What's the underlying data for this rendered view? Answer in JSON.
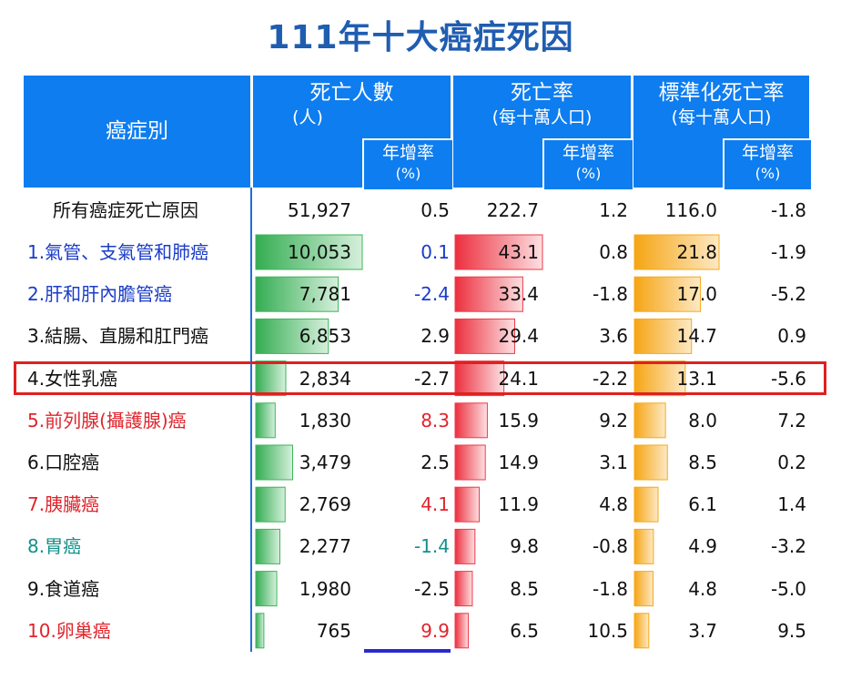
{
  "title": "111年十大癌症死因",
  "headers": {
    "category": "癌症別",
    "deaths": "死亡人數",
    "deaths_unit": "(人)",
    "rate": "死亡率",
    "rate_unit": "(每十萬人口)",
    "std_rate": "標準化死亡率",
    "std_rate_unit": "(每十萬人口)",
    "growth": "年增率",
    "growth_unit": "(%)"
  },
  "colors": {
    "header_bg": "#0e7df0",
    "title": "#1f5db0",
    "deaths_bar": "#3cb55a",
    "rate_bar": "#ee3a48",
    "std_rate_bar": "#f7a91c",
    "highlight": "#e02020",
    "divider": "#1d6fd8"
  },
  "total": {
    "name": "所有癌症死亡原因",
    "deaths": "51,927",
    "deaths_growth": "0.5",
    "rate": "222.7",
    "rate_growth": "1.2",
    "std_rate": "116.0",
    "std_rate_growth": "-1.8"
  },
  "rows": [
    {
      "name": "1.氣管、支氣管和肺癌",
      "name_color": "#1a3cc8",
      "deaths": "10,053",
      "deaths_value": 10053,
      "deaths_growth": "0.1",
      "deaths_growth_color": "#1a3cc8",
      "rate": "43.1",
      "rate_value": 43.1,
      "rate_growth": "0.8",
      "std_rate": "21.8",
      "std_rate_value": 21.8,
      "std_rate_growth": "-1.9"
    },
    {
      "name": "2.肝和肝內膽管癌",
      "name_color": "#1a3cc8",
      "deaths": "7,781",
      "deaths_value": 7781,
      "deaths_growth": "-2.4",
      "deaths_growth_color": "#1a3cc8",
      "rate": "33.4",
      "rate_value": 33.4,
      "rate_growth": "-1.8",
      "std_rate": "17.0",
      "std_rate_value": 17.0,
      "std_rate_growth": "-5.2"
    },
    {
      "name": "3.結腸、直腸和肛門癌",
      "name_color": "#111111",
      "deaths": "6,853",
      "deaths_value": 6853,
      "deaths_growth": "2.9",
      "deaths_growth_color": "#111111",
      "rate": "29.4",
      "rate_value": 29.4,
      "rate_growth": "3.6",
      "std_rate": "14.7",
      "std_rate_value": 14.7,
      "std_rate_growth": "0.9"
    },
    {
      "name": "4.女性乳癌",
      "name_color": "#111111",
      "deaths": "2,834",
      "deaths_value": 2834,
      "deaths_growth": "-2.7",
      "deaths_growth_color": "#111111",
      "rate": "24.1",
      "rate_value": 24.1,
      "rate_growth": "-2.2",
      "std_rate": "13.1",
      "std_rate_value": 13.1,
      "std_rate_growth": "-5.6"
    },
    {
      "name": "5.前列腺(攝護腺)癌",
      "name_color": "#e0242c",
      "deaths": "1,830",
      "deaths_value": 1830,
      "deaths_growth": "8.3",
      "deaths_growth_color": "#e0242c",
      "rate": "15.9",
      "rate_value": 15.9,
      "rate_growth": "9.2",
      "std_rate": "8.0",
      "std_rate_value": 8.0,
      "std_rate_growth": "7.2"
    },
    {
      "name": "6.口腔癌",
      "name_color": "#111111",
      "deaths": "3,479",
      "deaths_value": 3479,
      "deaths_growth": "2.5",
      "deaths_growth_color": "#111111",
      "rate": "14.9",
      "rate_value": 14.9,
      "rate_growth": "3.1",
      "std_rate": "8.5",
      "std_rate_value": 8.5,
      "std_rate_growth": "0.2"
    },
    {
      "name": "7.胰臟癌",
      "name_color": "#e0242c",
      "deaths": "2,769",
      "deaths_value": 2769,
      "deaths_growth": "4.1",
      "deaths_growth_color": "#e0242c",
      "rate": "11.9",
      "rate_value": 11.9,
      "rate_growth": "4.8",
      "std_rate": "6.1",
      "std_rate_value": 6.1,
      "std_rate_growth": "1.4"
    },
    {
      "name": "8.胃癌",
      "name_color": "#14908a",
      "deaths": "2,277",
      "deaths_value": 2277,
      "deaths_growth": "-1.4",
      "deaths_growth_color": "#14908a",
      "rate": "9.8",
      "rate_value": 9.8,
      "rate_growth": "-0.8",
      "std_rate": "4.9",
      "std_rate_value": 4.9,
      "std_rate_growth": "-3.2"
    },
    {
      "name": "9.食道癌",
      "name_color": "#111111",
      "deaths": "1,980",
      "deaths_value": 1980,
      "deaths_growth": "-2.5",
      "deaths_growth_color": "#111111",
      "rate": "8.5",
      "rate_value": 8.5,
      "rate_growth": "-1.8",
      "std_rate": "4.8",
      "std_rate_value": 4.8,
      "std_rate_growth": "-5.0"
    },
    {
      "name": "10.卵巢癌",
      "name_color": "#e0242c",
      "deaths": "765",
      "deaths_value": 765,
      "deaths_growth": "9.9",
      "deaths_growth_color": "#e0242c",
      "rate": "6.5",
      "rate_value": 6.5,
      "rate_growth": "10.5",
      "std_rate": "3.7",
      "std_rate_value": 3.7,
      "std_rate_growth": "9.5"
    }
  ],
  "highlighted_row": 3,
  "chart_data": {
    "type": "table",
    "title": "111年十大癌症死因",
    "columns": [
      "癌症別",
      "死亡人數(人)",
      "年增率(%)",
      "死亡率(每十萬人口)",
      "年增率(%)",
      "標準化死亡率(每十萬人口)",
      "年增率(%)"
    ],
    "rows": [
      [
        "所有癌症死亡原因",
        51927,
        0.5,
        222.7,
        1.2,
        116.0,
        -1.8
      ],
      [
        "1.氣管、支氣管和肺癌",
        10053,
        0.1,
        43.1,
        0.8,
        21.8,
        -1.9
      ],
      [
        "2.肝和肝內膽管癌",
        7781,
        -2.4,
        33.4,
        -1.8,
        17.0,
        -5.2
      ],
      [
        "3.結腸、直腸和肛門癌",
        6853,
        2.9,
        29.4,
        3.6,
        14.7,
        0.9
      ],
      [
        "4.女性乳癌",
        2834,
        -2.7,
        24.1,
        -2.2,
        13.1,
        -5.6
      ],
      [
        "5.前列腺(攝護腺)癌",
        1830,
        8.3,
        15.9,
        9.2,
        8.0,
        7.2
      ],
      [
        "6.口腔癌",
        3479,
        2.5,
        14.9,
        3.1,
        8.5,
        0.2
      ],
      [
        "7.胰臟癌",
        2769,
        4.1,
        11.9,
        4.8,
        6.1,
        1.4
      ],
      [
        "8.胃癌",
        2277,
        -1.4,
        9.8,
        -0.8,
        4.9,
        -3.2
      ],
      [
        "9.食道癌",
        1980,
        -2.5,
        8.5,
        -1.8,
        4.8,
        -5.0
      ],
      [
        "10.卵巢癌",
        765,
        9.9,
        6.5,
        10.5,
        3.7,
        9.5
      ]
    ],
    "bar_columns": [
      "死亡人數(人)",
      "死亡率(每十萬人口)",
      "標準化死亡率(每十萬人口)"
    ]
  }
}
